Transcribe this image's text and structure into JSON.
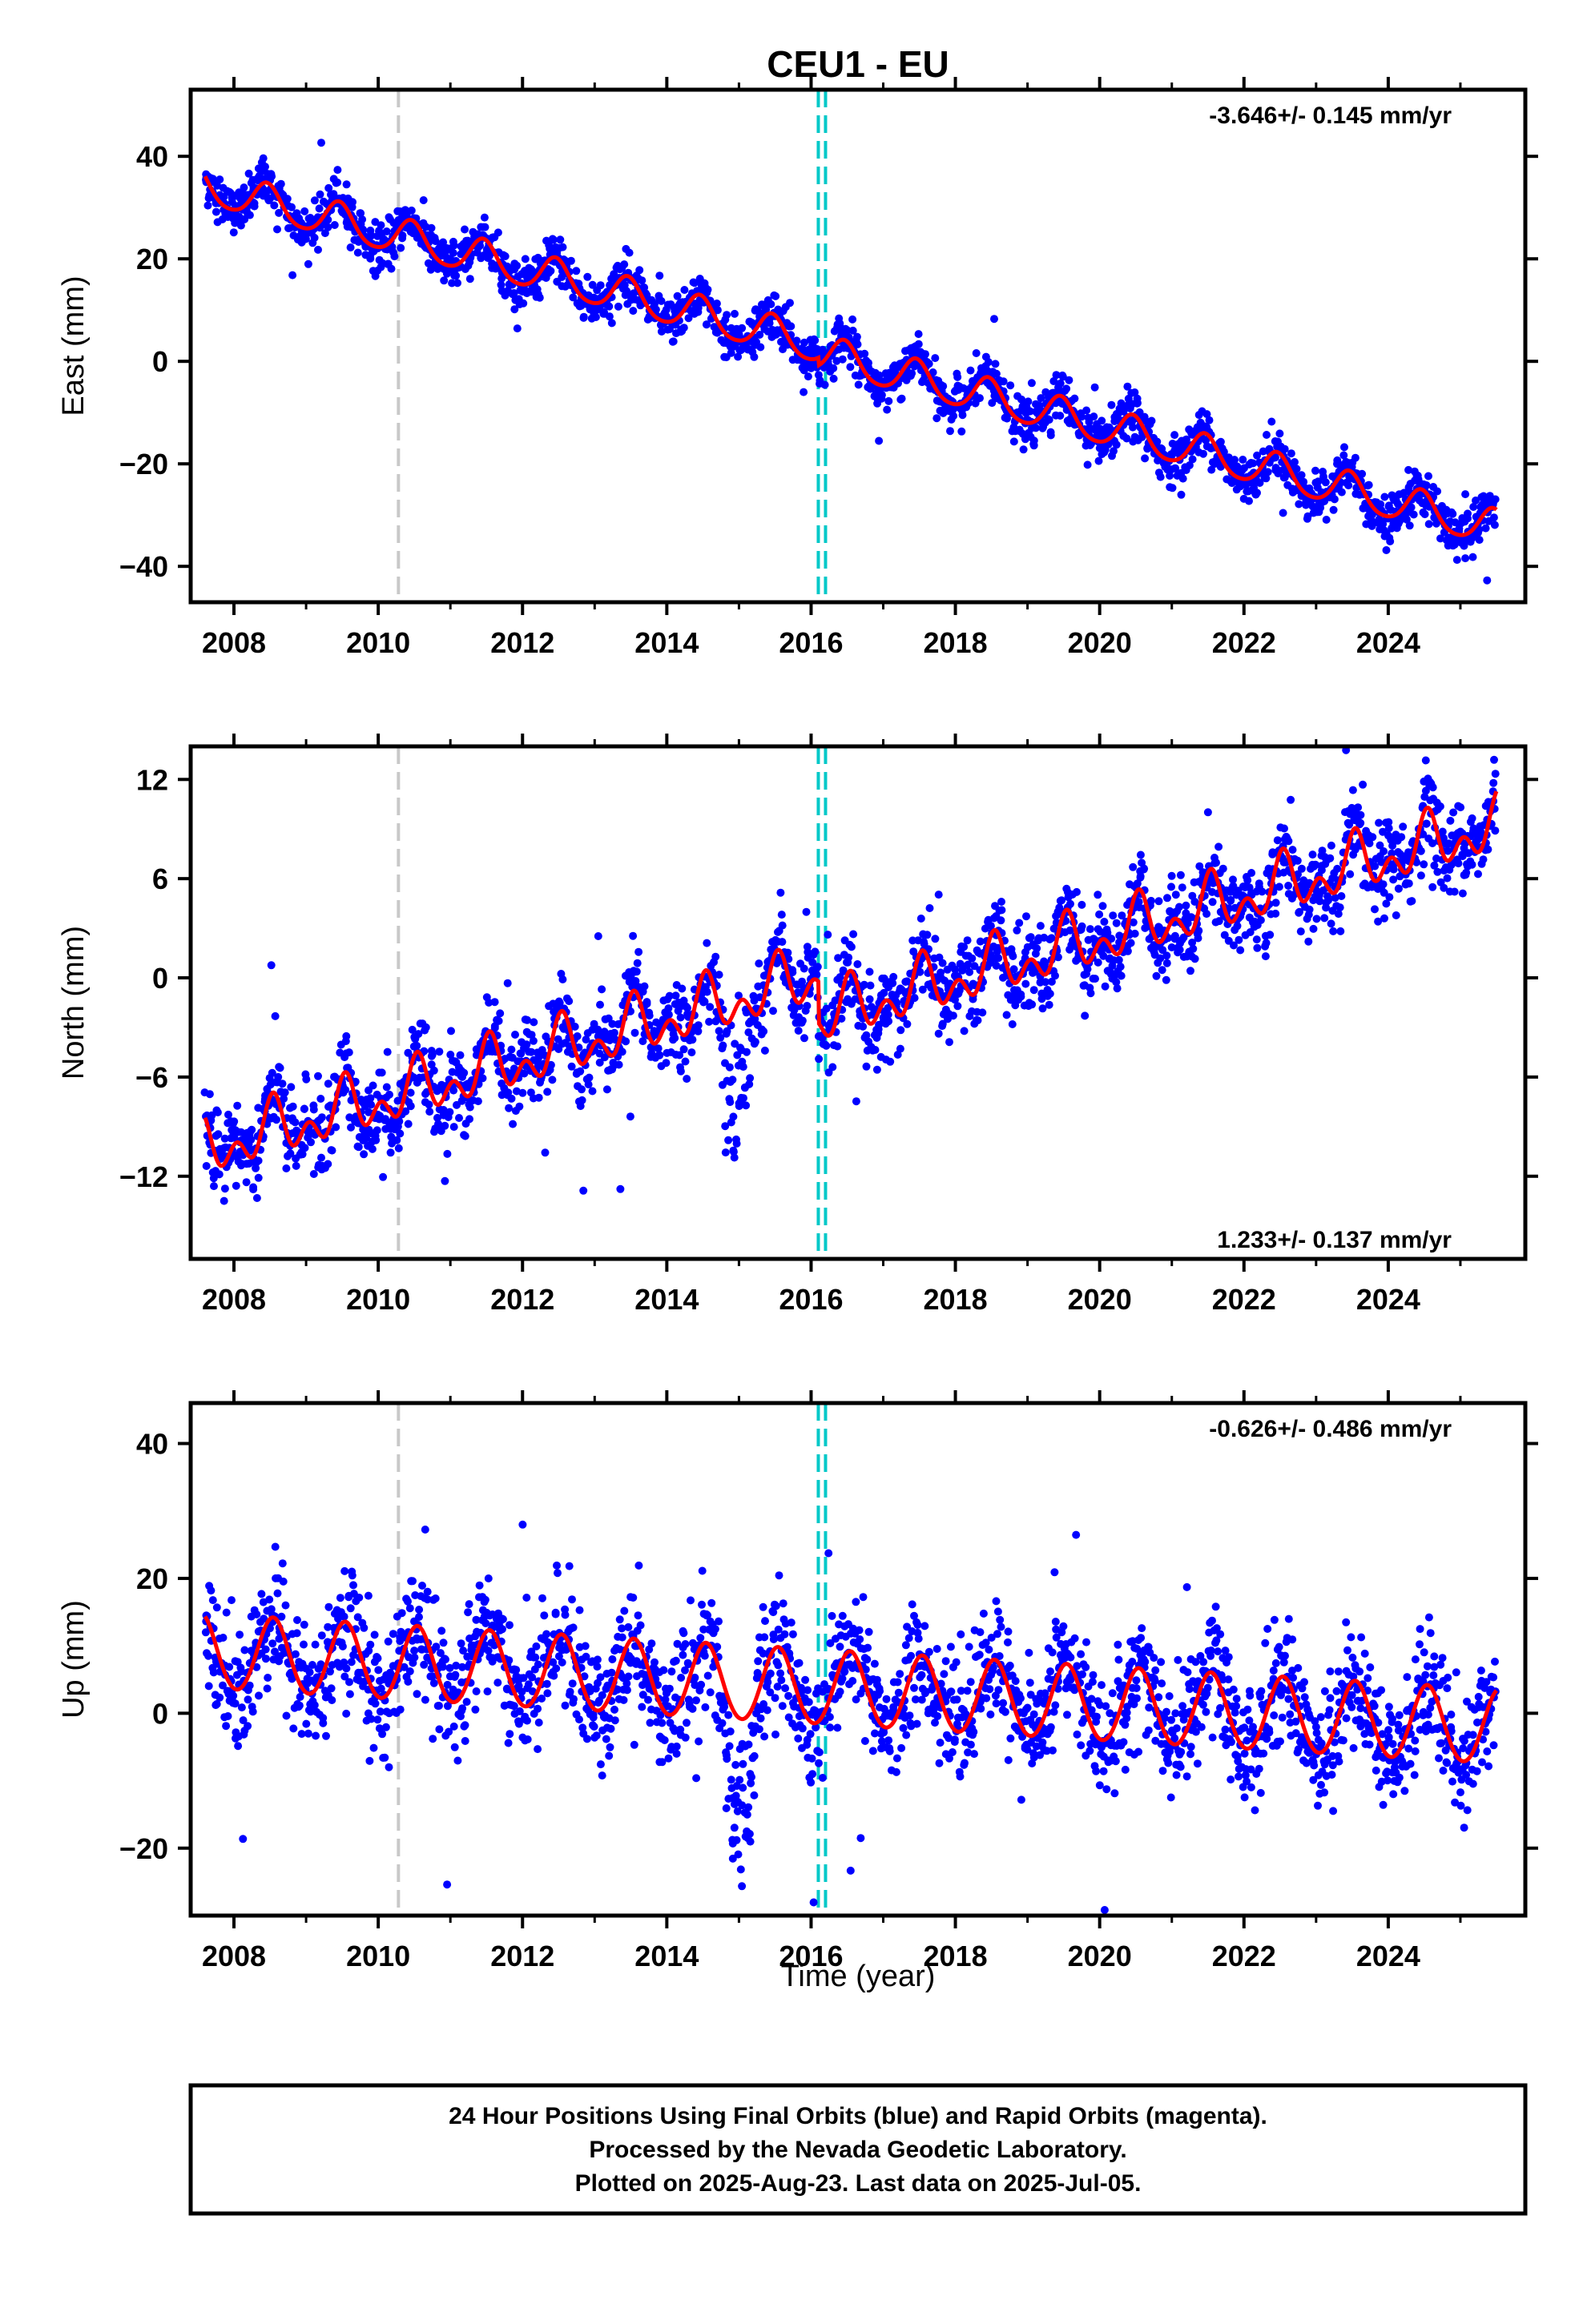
{
  "title": "CEU1 - EU",
  "colors": {
    "data": "#0000ff",
    "model": "#ff0000",
    "equipment_change": "#c8c8c8",
    "earthquake": "#00c8c8",
    "rapid": "#ff00ff"
  },
  "shared_x_axis": {
    "label": "Time (year)",
    "range": [
      2007.4,
      2025.9
    ],
    "ticks": [
      "2008",
      "2010",
      "2012",
      "2014",
      "2016",
      "2018",
      "2020",
      "2022",
      "2024"
    ]
  },
  "markers": {
    "equipment_change": [
      2010.28
    ],
    "earthquake": [
      2016.1,
      2016.2
    ]
  },
  "footer": {
    "line1": "24 Hour Positions Using Final Orbits (blue) and Rapid Orbits (magenta).",
    "line2": "Processed by the Nevada Geodetic Laboratory.",
    "line3": "Plotted on 2025-Aug-23. Last data on 2025-Jul-05."
  },
  "chart_data": [
    {
      "type": "scatter",
      "component": "east",
      "ylabel": "East (mm)",
      "rate_label": "-3.646+/- 0.145 mm/yr",
      "xlim": [
        2007.4,
        2025.9
      ],
      "ylim": [
        -47,
        53
      ],
      "yticks": [
        "40",
        "20",
        "0",
        "−20",
        "−40"
      ],
      "ytick_values": [
        40,
        20,
        0,
        -20,
        -40
      ],
      "data_span": [
        2007.6,
        2025.5
      ],
      "model": {
        "intercept_at_start": 34,
        "rate_mm_per_yr": -3.646,
        "annual_amplitude": 3.5,
        "annual_peak_month": 6,
        "semiannual_amplitude": 0.5,
        "offset_at_2016_1": -1.5
      },
      "scatter_sd": 2.2,
      "anomalies": []
    },
    {
      "type": "scatter",
      "component": "north",
      "ylabel": "North (mm)",
      "rate_label": "1.233+/- 0.137 mm/yr",
      "xlim": [
        2007.4,
        2025.9
      ],
      "ylim": [
        -17,
        14
      ],
      "yticks": [
        "12",
        "6",
        "0",
        "−6",
        "−12"
      ],
      "ytick_values": [
        12,
        6,
        0,
        -6,
        -12
      ],
      "data_span": [
        2007.6,
        2025.5
      ],
      "model": {
        "intercept_at_start": -10.4,
        "rate_mm_per_yr": 1.233,
        "annual_amplitude": 1.2,
        "annual_peak_month": 7,
        "semiannual_amplitude": 1.1,
        "offset_at_2016_1": -2.5
      },
      "scatter_sd": 1.3,
      "anomalies": [
        {
          "from": 2014.7,
          "to": 2015.2,
          "shift": -5
        }
      ]
    },
    {
      "type": "scatter",
      "component": "up",
      "ylabel": "Up (mm)",
      "rate_label": "-0.626+/- 0.486 mm/yr",
      "xlim": [
        2007.4,
        2025.9
      ],
      "ylim": [
        -30,
        46
      ],
      "yticks": [
        "40",
        "20",
        "0",
        "−20"
      ],
      "ytick_values": [
        40,
        20,
        0,
        -20
      ],
      "data_span": [
        2007.6,
        2025.5
      ],
      "model": {
        "intercept_at_start": 9,
        "rate_mm_per_yr": -0.626,
        "annual_amplitude": 5.5,
        "annual_peak_month": 7,
        "semiannual_amplitude": 0.3,
        "offset_at_2016_1": 0
      },
      "scatter_sd": 4.5,
      "anomalies": [
        {
          "from": 2014.7,
          "to": 2015.3,
          "shift": -13
        }
      ]
    }
  ]
}
